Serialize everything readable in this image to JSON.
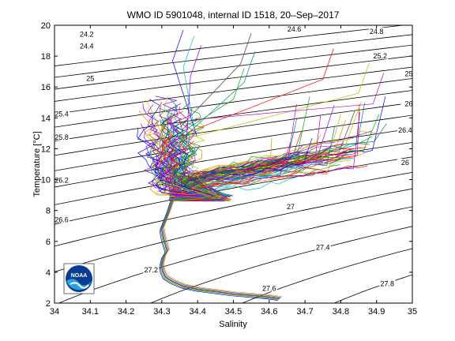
{
  "chart_data": {
    "type": "line",
    "title": "WMO ID 5901048, internal ID 1518, 20–Sep–2017",
    "xlabel": "Salinity",
    "ylabel": "Temperature [°C]",
    "xlim": [
      34,
      35
    ],
    "ylim": [
      2,
      20
    ],
    "xticks": [
      "34",
      "34.1",
      "34.2",
      "34.3",
      "34.4",
      "34.5",
      "34.6",
      "34.7",
      "34.8",
      "34.9",
      "35"
    ],
    "yticks": [
      "2",
      "4",
      "6",
      "8",
      "10",
      "12",
      "14",
      "16",
      "18",
      "20"
    ],
    "grid": false,
    "legend": "none",
    "logo_text": "NOAA",
    "density_contours": [
      {
        "label": "24.2",
        "label_x": 34.09,
        "label_y": 19.35
      },
      {
        "label": "24.4",
        "label_x": 34.09,
        "label_y": 18.6
      },
      {
        "label": "24.6",
        "label_x": 34.67,
        "label_y": 19.7
      },
      {
        "label": "24.8",
        "label_x": 34.9,
        "label_y": 19.55
      },
      {
        "label": "25",
        "label_x": 34.1,
        "label_y": 16.5
      },
      {
        "label": "25.2",
        "label_x": 34.91,
        "label_y": 17.95
      },
      {
        "label": "25.4",
        "label_x": 34.02,
        "label_y": 14.2
      },
      {
        "label": "25",
        "label_x": 34.99,
        "label_y": 16.8
      },
      {
        "label": "25.8",
        "label_x": 34.02,
        "label_y": 12.7
      },
      {
        "label": "26",
        "label_x": 34.99,
        "label_y": 14.85
      },
      {
        "label": "26.2",
        "label_x": 34.02,
        "label_y": 9.9
      },
      {
        "label": "26.4",
        "label_x": 34.98,
        "label_y": 13.15
      },
      {
        "label": "26.6",
        "label_x": 34.02,
        "label_y": 7.35
      },
      {
        "label": "26",
        "label_x": 34.98,
        "label_y": 11.05
      },
      {
        "label": "27",
        "label_x": 34.66,
        "label_y": 8.2
      },
      {
        "label": "27.2",
        "label_x": 34.27,
        "label_y": 4.1
      },
      {
        "label": "27.4",
        "label_x": 34.75,
        "label_y": 5.55
      },
      {
        "label": "27.6",
        "label_x": 34.6,
        "label_y": 2.9
      },
      {
        "label": "27.8",
        "label_x": 34.93,
        "label_y": 3.2
      }
    ],
    "deep_profile": {
      "name": "",
      "color": "#3a7a3a",
      "x": [
        34.33,
        34.32,
        34.31,
        34.3,
        34.305,
        34.31,
        34.315,
        34.305,
        34.3,
        34.302,
        34.31,
        34.33,
        34.36,
        34.4,
        34.45,
        34.5,
        34.55,
        34.6,
        34.63
      ],
      "y": [
        8.7,
        8.0,
        7.4,
        6.8,
        6.2,
        5.8,
        5.4,
        5.0,
        4.5,
        4.1,
        3.7,
        3.4,
        3.1,
        2.9,
        2.75,
        2.6,
        2.5,
        2.4,
        2.3
      ]
    },
    "upper_envelope": {
      "x": [
        34.38,
        34.33,
        34.29,
        34.27,
        34.26,
        34.27,
        34.3,
        34.33,
        34.37,
        34.4,
        34.46,
        34.53,
        34.6,
        34.68,
        34.76,
        34.84,
        34.91
      ],
      "y": [
        8.9,
        9.8,
        11.2,
        12.6,
        13.8,
        15.3,
        15.6,
        14.0,
        12.2,
        11.2,
        11.6,
        12.2,
        12.7,
        13.2,
        13.7,
        14.1,
        14.6
      ]
    }
  }
}
